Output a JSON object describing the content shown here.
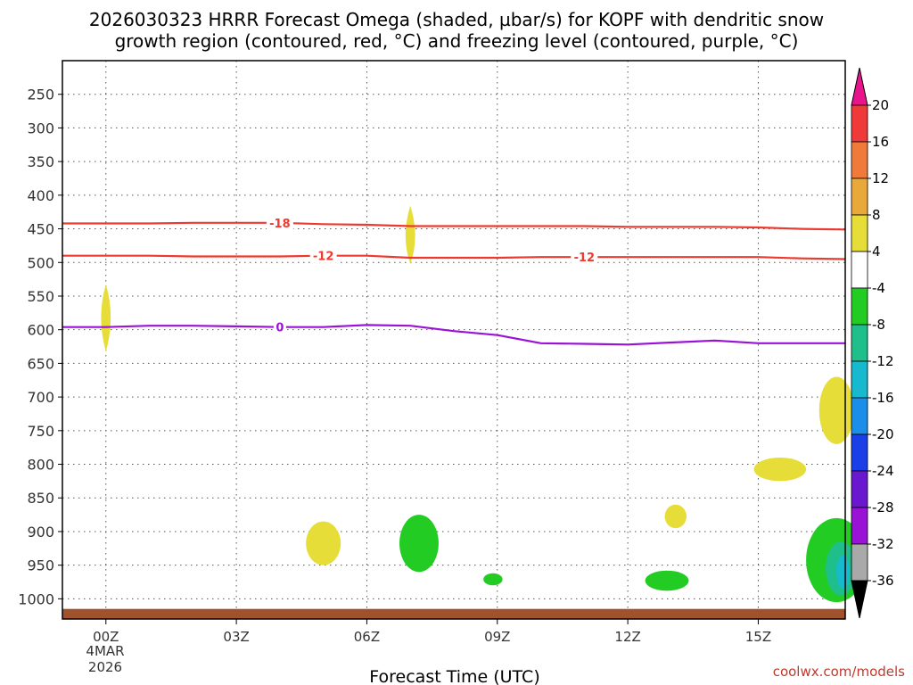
{
  "title_line1": "2026030323 HRRR Forecast Omega (shaded, µbar/s) for KOPF with dendritic snow",
  "title_line2": "growth region (contoured, red, °C) and freezing level (contoured, purple, °C)",
  "xlabel": "Forecast Time (UTC)",
  "date_line1": "4MAR",
  "date_line2": "2026",
  "credit": "coolwx.com/models",
  "colors": {
    "dgz": "#ee3a2e",
    "freezing": "#9a12d6",
    "ground": "#a0522d"
  },
  "chart_data": {
    "type": "time-height cross section",
    "y_axis": {
      "unit": "hPa",
      "reversed": true,
      "range": [
        200,
        1030
      ],
      "ticks": [
        250,
        300,
        350,
        400,
        450,
        500,
        550,
        600,
        650,
        700,
        750,
        800,
        850,
        900,
        950,
        1000
      ]
    },
    "x_axis": {
      "unit": "hours from 00Z",
      "range": [
        -1,
        17
      ],
      "ticks": [
        {
          "h": 0,
          "label": "00Z"
        },
        {
          "h": 3,
          "label": "03Z"
        },
        {
          "h": 6,
          "label": "06Z"
        },
        {
          "h": 9,
          "label": "09Z"
        },
        {
          "h": 12,
          "label": "12Z"
        },
        {
          "h": 15,
          "label": "15Z"
        }
      ]
    },
    "grid": true,
    "contours": [
      {
        "value": -18,
        "color": "#ee3a2e",
        "label": "-18",
        "label_at": 4,
        "points": [
          [
            -1,
            442
          ],
          [
            1,
            442
          ],
          [
            2,
            441
          ],
          [
            3,
            441
          ],
          [
            4,
            441
          ],
          [
            5,
            443
          ],
          [
            6,
            444
          ],
          [
            7,
            446
          ],
          [
            8,
            446
          ],
          [
            9,
            446
          ],
          [
            10,
            446
          ],
          [
            11,
            446
          ],
          [
            12,
            447
          ],
          [
            13,
            447
          ],
          [
            14,
            447
          ],
          [
            15,
            448
          ],
          [
            16,
            450
          ],
          [
            17,
            451
          ]
        ]
      },
      {
        "value": -12,
        "color": "#ee3a2e",
        "label": "-12",
        "label_at": 5,
        "points": [
          [
            -1,
            490
          ],
          [
            1,
            490
          ],
          [
            2,
            491
          ],
          [
            3,
            491
          ],
          [
            4,
            491
          ],
          [
            5,
            490
          ],
          [
            6,
            490
          ],
          [
            7,
            493
          ],
          [
            8,
            493
          ],
          [
            9,
            493
          ],
          [
            10,
            492
          ],
          [
            11,
            492
          ],
          [
            12,
            492
          ],
          [
            13,
            492
          ],
          [
            14,
            492
          ],
          [
            15,
            492
          ],
          [
            16,
            494
          ],
          [
            17,
            495
          ]
        ]
      },
      {
        "value": -12,
        "color": "#ee3a2e",
        "label": "-12",
        "label_at": 11,
        "label_only": true,
        "points": []
      },
      {
        "value": 0,
        "color": "#9a12d6",
        "label": "0",
        "label_at": 4,
        "points": [
          [
            -1,
            596
          ],
          [
            0,
            596
          ],
          [
            1,
            594
          ],
          [
            2,
            594
          ],
          [
            3,
            595
          ],
          [
            4,
            596
          ],
          [
            5,
            596
          ],
          [
            6,
            593
          ],
          [
            7,
            594
          ],
          [
            8,
            602
          ],
          [
            9,
            608
          ],
          [
            10,
            620
          ],
          [
            11,
            621
          ],
          [
            12,
            622
          ],
          [
            13,
            619
          ],
          [
            14,
            616
          ],
          [
            15,
            620
          ],
          [
            16,
            620
          ],
          [
            17,
            620
          ]
        ]
      }
    ],
    "omega_regions": [
      {
        "value_bin": "4 to 8",
        "color": "#e6dd38",
        "shape": "diamond",
        "center": [
          0,
          581
        ],
        "half_width_h": 0.2,
        "top": 535,
        "bottom": 630
      },
      {
        "value_bin": "4 to 8",
        "color": "#e6dd38",
        "shape": "diamond",
        "center": [
          7,
          462
        ],
        "half_width_h": 0.2,
        "top": 418,
        "bottom": 500
      },
      {
        "value_bin": "4 to 8",
        "color": "#e6dd38",
        "shape": "ellipse",
        "center": [
          5,
          920
        ],
        "half_width_h": 0.4,
        "top": 885,
        "bottom": 950
      },
      {
        "value_bin": "4 to 8",
        "color": "#e6dd38",
        "shape": "ellipse",
        "center": [
          15.5,
          808
        ],
        "half_width_h": 0.6,
        "top": 790,
        "bottom": 825
      },
      {
        "value_bin": "4 to 8",
        "color": "#e6dd38",
        "shape": "ellipse",
        "center": [
          13.1,
          876
        ],
        "half_width_h": 0.25,
        "top": 860,
        "bottom": 895
      },
      {
        "value_bin": "4 to 8",
        "color": "#e6dd38",
        "shape": "ellipse",
        "center": [
          16.8,
          720
        ],
        "half_width_h": 0.4,
        "top": 670,
        "bottom": 770
      },
      {
        "value_bin": "-4 to -8",
        "color": "#22cc22",
        "shape": "ellipse",
        "center": [
          7.2,
          920
        ],
        "half_width_h": 0.45,
        "top": 875,
        "bottom": 960
      },
      {
        "value_bin": "-4 to -8",
        "color": "#22cc22",
        "shape": "ellipse",
        "center": [
          8.9,
          970
        ],
        "half_width_h": 0.22,
        "top": 962,
        "bottom": 980
      },
      {
        "value_bin": "-4 to -8",
        "color": "#22cc22",
        "shape": "ellipse",
        "center": [
          12.9,
          972
        ],
        "half_width_h": 0.5,
        "top": 958,
        "bottom": 988
      },
      {
        "value_bin": "-4 to -8",
        "color": "#22cc22",
        "shape": "ellipse",
        "center": [
          16.8,
          945
        ],
        "half_width_h": 0.7,
        "top": 880,
        "bottom": 1005
      },
      {
        "value_bin": "-8 to -12",
        "color": "#1fbf8b",
        "shape": "ellipse",
        "center": [
          16.9,
          955
        ],
        "half_width_h": 0.35,
        "top": 915,
        "bottom": 995
      },
      {
        "value_bin": "-12 to -16",
        "color": "#17b9cf",
        "shape": "ellipse",
        "center": [
          16.95,
          960
        ],
        "half_width_h": 0.15,
        "top": 935,
        "bottom": 985
      }
    ],
    "ground": {
      "pressure_top": 1015,
      "color": "#a0522d"
    },
    "colorbar": {
      "top_arrow_color": "#e8148c",
      "bottom_arrow_color": "#000000",
      "bins": [
        {
          "color": "#f03a3a"
        },
        {
          "color": "#f07a3a"
        },
        {
          "color": "#e8a93a"
        },
        {
          "color": "#e6dd38"
        },
        {
          "color": "#ffffff"
        },
        {
          "color": "#22cc22"
        },
        {
          "color": "#1fbf8b"
        },
        {
          "color": "#17b9cf"
        },
        {
          "color": "#1a8ee8"
        },
        {
          "color": "#1a3fe8"
        },
        {
          "color": "#6a18d0"
        },
        {
          "color": "#9a12d6"
        },
        {
          "color": "#a9a9a9"
        }
      ],
      "labels": [
        "20",
        "16",
        "12",
        "8",
        "4",
        "-4",
        "-8",
        "-12",
        "-16",
        "-20",
        "-24",
        "-28",
        "-32",
        "-36"
      ]
    }
  }
}
